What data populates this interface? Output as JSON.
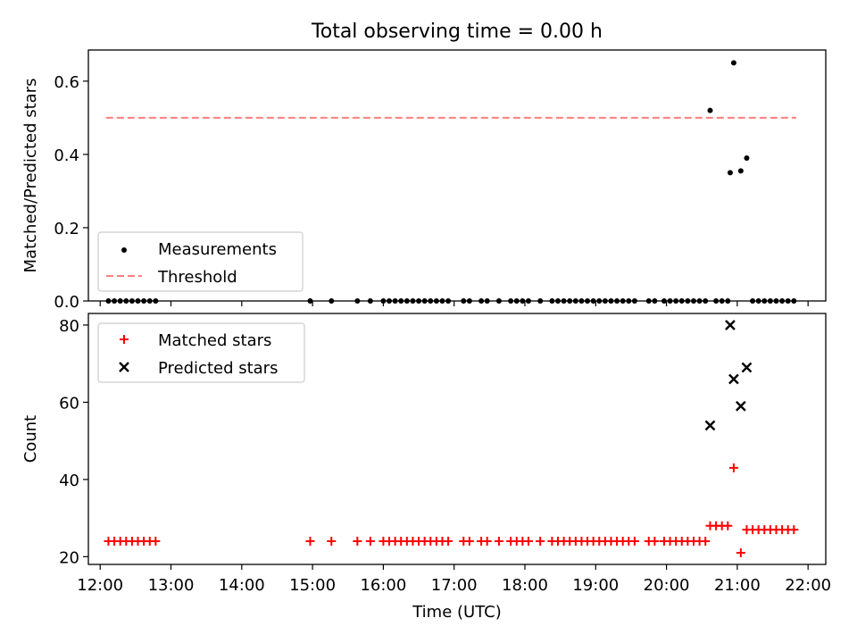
{
  "chart_data": [
    {
      "type": "scatter",
      "title": "Total observing time = 0.00 h",
      "xlabel": "",
      "ylabel": "Matched/Predicted stars",
      "xlim": [
        "11:50",
        "22:15"
      ],
      "ylim": [
        0,
        0.685
      ],
      "yticks": [
        "0.0",
        "0.2",
        "0.4",
        "0.6"
      ],
      "grid": false,
      "legend_position": "lower-left",
      "legend": [
        "Measurements",
        "Threshold"
      ],
      "threshold": {
        "name": "Threshold",
        "value": 0.5,
        "x": [
          "12:05",
          "21:50"
        ],
        "color": "#ff7f7f"
      },
      "series": [
        {
          "name": "Measurements",
          "color": "#000000",
          "points": [
            [
              "12:07",
              0
            ],
            [
              "12:12",
              0
            ],
            [
              "12:17",
              0
            ],
            [
              "12:22",
              0
            ],
            [
              "12:27",
              0
            ],
            [
              "12:32",
              0
            ],
            [
              "12:37",
              0
            ],
            [
              "12:42",
              0
            ],
            [
              "12:47",
              0
            ],
            [
              "14:58",
              0
            ],
            [
              "15:16",
              0
            ],
            [
              "15:38",
              0
            ],
            [
              "15:49",
              0
            ],
            [
              "16:00",
              0
            ],
            [
              "16:05",
              0
            ],
            [
              "16:10",
              0
            ],
            [
              "16:15",
              0
            ],
            [
              "16:20",
              0
            ],
            [
              "16:25",
              0
            ],
            [
              "16:30",
              0
            ],
            [
              "16:35",
              0
            ],
            [
              "16:40",
              0
            ],
            [
              "16:45",
              0
            ],
            [
              "16:50",
              0
            ],
            [
              "16:55",
              0
            ],
            [
              "17:08",
              0
            ],
            [
              "17:13",
              0
            ],
            [
              "17:23",
              0
            ],
            [
              "17:28",
              0
            ],
            [
              "17:38",
              0
            ],
            [
              "17:48",
              0
            ],
            [
              "17:53",
              0
            ],
            [
              "17:58",
              0
            ],
            [
              "18:03",
              0
            ],
            [
              "18:13",
              0
            ],
            [
              "18:23",
              0
            ],
            [
              "18:28",
              0
            ],
            [
              "18:33",
              0
            ],
            [
              "18:38",
              0
            ],
            [
              "18:43",
              0
            ],
            [
              "18:48",
              0
            ],
            [
              "18:53",
              0
            ],
            [
              "18:58",
              0
            ],
            [
              "19:03",
              0
            ],
            [
              "19:08",
              0
            ],
            [
              "19:13",
              0
            ],
            [
              "19:18",
              0
            ],
            [
              "19:23",
              0
            ],
            [
              "19:28",
              0
            ],
            [
              "19:33",
              0
            ],
            [
              "19:45",
              0
            ],
            [
              "19:50",
              0
            ],
            [
              "19:58",
              0
            ],
            [
              "20:03",
              0
            ],
            [
              "20:08",
              0
            ],
            [
              "20:13",
              0
            ],
            [
              "20:18",
              0
            ],
            [
              "20:23",
              0
            ],
            [
              "20:28",
              0
            ],
            [
              "20:33",
              0
            ],
            [
              "20:37",
              0.52
            ],
            [
              "20:42",
              0
            ],
            [
              "20:47",
              0
            ],
            [
              "20:52",
              0
            ],
            [
              "20:54",
              0.35
            ],
            [
              "20:57",
              0.65
            ],
            [
              "21:03",
              0.355
            ],
            [
              "21:08",
              0.39
            ],
            [
              "21:13",
              0
            ],
            [
              "21:18",
              0
            ],
            [
              "21:23",
              0
            ],
            [
              "21:28",
              0
            ],
            [
              "21:33",
              0
            ],
            [
              "21:38",
              0
            ],
            [
              "21:43",
              0
            ],
            [
              "21:48",
              0
            ]
          ]
        }
      ]
    },
    {
      "type": "scatter",
      "title": "",
      "xlabel": "Time (UTC)",
      "ylabel": "Count",
      "xlim": [
        "11:50",
        "22:15"
      ],
      "ylim": [
        18,
        83
      ],
      "xticks": [
        "12:00",
        "13:00",
        "14:00",
        "15:00",
        "16:00",
        "17:00",
        "18:00",
        "19:00",
        "20:00",
        "21:00",
        "22:00"
      ],
      "yticks": [
        "20",
        "40",
        "60",
        "80"
      ],
      "grid": false,
      "legend_position": "upper-left",
      "legend": [
        "Matched stars",
        "Predicted stars"
      ],
      "series": [
        {
          "name": "Matched stars",
          "marker": "plus",
          "color": "#ff0000",
          "points": [
            [
              "12:07",
              24
            ],
            [
              "12:12",
              24
            ],
            [
              "12:17",
              24
            ],
            [
              "12:22",
              24
            ],
            [
              "12:27",
              24
            ],
            [
              "12:32",
              24
            ],
            [
              "12:37",
              24
            ],
            [
              "12:42",
              24
            ],
            [
              "12:47",
              24
            ],
            [
              "14:58",
              24
            ],
            [
              "15:16",
              24
            ],
            [
              "15:38",
              24
            ],
            [
              "15:49",
              24
            ],
            [
              "16:00",
              24
            ],
            [
              "16:05",
              24
            ],
            [
              "16:10",
              24
            ],
            [
              "16:15",
              24
            ],
            [
              "16:20",
              24
            ],
            [
              "16:25",
              24
            ],
            [
              "16:30",
              24
            ],
            [
              "16:35",
              24
            ],
            [
              "16:40",
              24
            ],
            [
              "16:45",
              24
            ],
            [
              "16:50",
              24
            ],
            [
              "16:55",
              24
            ],
            [
              "17:08",
              24
            ],
            [
              "17:13",
              24
            ],
            [
              "17:23",
              24
            ],
            [
              "17:28",
              24
            ],
            [
              "17:38",
              24
            ],
            [
              "17:48",
              24
            ],
            [
              "17:53",
              24
            ],
            [
              "17:58",
              24
            ],
            [
              "18:03",
              24
            ],
            [
              "18:13",
              24
            ],
            [
              "18:23",
              24
            ],
            [
              "18:28",
              24
            ],
            [
              "18:33",
              24
            ],
            [
              "18:38",
              24
            ],
            [
              "18:43",
              24
            ],
            [
              "18:48",
              24
            ],
            [
              "18:53",
              24
            ],
            [
              "18:58",
              24
            ],
            [
              "19:03",
              24
            ],
            [
              "19:08",
              24
            ],
            [
              "19:13",
              24
            ],
            [
              "19:18",
              24
            ],
            [
              "19:23",
              24
            ],
            [
              "19:28",
              24
            ],
            [
              "19:33",
              24
            ],
            [
              "19:45",
              24
            ],
            [
              "19:50",
              24
            ],
            [
              "19:58",
              24
            ],
            [
              "20:03",
              24
            ],
            [
              "20:08",
              24
            ],
            [
              "20:13",
              24
            ],
            [
              "20:18",
              24
            ],
            [
              "20:23",
              24
            ],
            [
              "20:28",
              24
            ],
            [
              "20:33",
              24
            ],
            [
              "20:37",
              28
            ],
            [
              "20:42",
              28
            ],
            [
              "20:47",
              28
            ],
            [
              "20:52",
              28
            ],
            [
              "20:57",
              43
            ],
            [
              "21:03",
              21
            ],
            [
              "21:08",
              27
            ],
            [
              "21:13",
              27
            ],
            [
              "21:18",
              27
            ],
            [
              "21:23",
              27
            ],
            [
              "21:28",
              27
            ],
            [
              "21:33",
              27
            ],
            [
              "21:38",
              27
            ],
            [
              "21:43",
              27
            ],
            [
              "21:48",
              27
            ]
          ]
        },
        {
          "name": "Predicted stars",
          "marker": "x",
          "color": "#000000",
          "points": [
            [
              "20:37",
              54
            ],
            [
              "20:54",
              80
            ],
            [
              "20:57",
              66
            ],
            [
              "21:03",
              59
            ],
            [
              "21:08",
              69
            ]
          ]
        }
      ]
    }
  ]
}
